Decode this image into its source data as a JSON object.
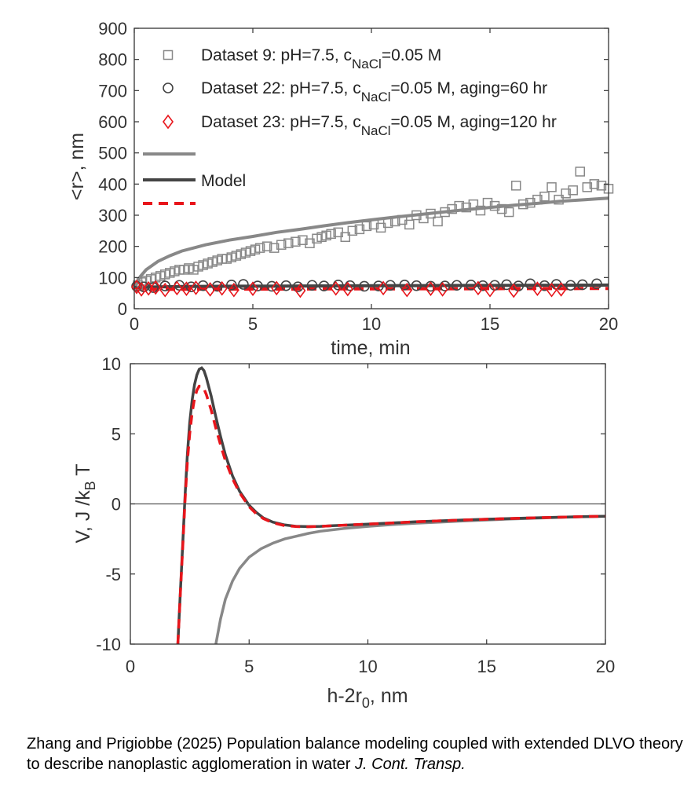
{
  "chart_data": [
    {
      "type": "scatter",
      "xlabel": "time, min",
      "ylabel": "<r>, nm",
      "xlim": [
        0,
        20
      ],
      "ylim": [
        0,
        900
      ],
      "xticks": [
        "0",
        "5",
        "10",
        "15",
        "20"
      ],
      "yticks": [
        "0",
        "100",
        "200",
        "300",
        "400",
        "500",
        "600",
        "700",
        "800",
        "900"
      ],
      "legend_placement": "top-left",
      "series": [
        {
          "name": "Dataset 9: pH=7.5, c_NaCl=0.05 M",
          "legend_parts": [
            "Dataset 9: pH=7.5, c",
            "NaCl",
            "=0.05 M"
          ],
          "marker": "square",
          "color": "#888888",
          "x": [
            0.15,
            0.3,
            0.5,
            0.7,
            0.9,
            1.1,
            1.3,
            1.5,
            1.7,
            1.9,
            2.1,
            2.3,
            2.5,
            2.7,
            2.9,
            3.1,
            3.3,
            3.5,
            3.7,
            3.9,
            4.1,
            4.3,
            4.5,
            4.7,
            4.9,
            5.1,
            5.3,
            5.6,
            5.9,
            6.2,
            6.5,
            6.8,
            7.1,
            7.4,
            7.7,
            7.9,
            8.1,
            8.3,
            8.6,
            8.9,
            9.2,
            9.5,
            9.8,
            10.1,
            10.4,
            10.7,
            11.0,
            11.3,
            11.6,
            11.9,
            12.2,
            12.5,
            12.8,
            13.1,
            13.4,
            13.7,
            14.0,
            14.3,
            14.6,
            14.9,
            15.2,
            15.5,
            15.8,
            16.1,
            16.4,
            16.7,
            17.0,
            17.3,
            17.6,
            17.9,
            18.2,
            18.5,
            18.8,
            19.1,
            19.4,
            19.7,
            20.0
          ],
          "y": [
            75,
            85,
            90,
            95,
            100,
            105,
            110,
            115,
            120,
            125,
            125,
            130,
            125,
            135,
            140,
            145,
            150,
            155,
            160,
            160,
            165,
            170,
            175,
            180,
            185,
            190,
            195,
            200,
            195,
            205,
            210,
            215,
            220,
            210,
            225,
            230,
            235,
            240,
            245,
            230,
            250,
            255,
            265,
            270,
            260,
            275,
            280,
            285,
            270,
            300,
            290,
            305,
            280,
            310,
            320,
            330,
            325,
            335,
            315,
            340,
            330,
            320,
            310,
            395,
            335,
            340,
            350,
            360,
            390,
            350,
            370,
            380,
            440,
            390,
            400,
            395,
            385
          ]
        },
        {
          "name": "Dataset 22: pH=7.5, c_NaCl=0.05 M, aging=60 hr",
          "legend_parts": [
            "Dataset 22: pH=7.5, c",
            "NaCl",
            "=0.05 M, aging=60 hr"
          ],
          "marker": "circle",
          "color": "#444444",
          "x": [
            0.1,
            0.4,
            0.8,
            1.3,
            1.9,
            2.4,
            2.9,
            3.5,
            4.1,
            4.6,
            5.2,
            5.8,
            6.4,
            6.9,
            7.5,
            8.0,
            8.6,
            9.1,
            9.7,
            10.3,
            10.8,
            11.4,
            11.9,
            12.5,
            13.1,
            13.6,
            14.2,
            14.7,
            15.2,
            15.7,
            16.2,
            16.7,
            17.3,
            17.8,
            18.4,
            18.9,
            19.5
          ],
          "y": [
            72,
            70,
            68,
            73,
            75,
            70,
            74,
            72,
            76,
            78,
            73,
            72,
            74,
            70,
            75,
            73,
            76,
            74,
            72,
            73,
            75,
            76,
            74,
            72,
            73,
            75,
            76,
            74,
            75,
            77,
            73,
            80,
            74,
            78,
            75,
            77,
            80
          ]
        },
        {
          "name": "Dataset 23: pH=7.5, c_NaCl=0.05 M, aging=120 hr",
          "legend_parts": [
            "Dataset 23: pH=7.5, c",
            "NaCl",
            "=0.05 M, aging=120 hr"
          ],
          "marker": "diamond",
          "color": "#e8151b",
          "x": [
            0.1,
            0.3,
            0.6,
            0.9,
            1.3,
            1.8,
            2.2,
            2.6,
            3.2,
            3.7,
            4.2,
            5.0,
            6.0,
            7.0,
            8.5,
            9.0,
            10.5,
            11.5,
            12.5,
            13.0,
            14.5,
            15.0,
            16.0,
            17.0,
            17.6,
            18.0
          ],
          "y": [
            70,
            62,
            65,
            68,
            60,
            66,
            64,
            67,
            62,
            65,
            60,
            64,
            66,
            58,
            65,
            63,
            66,
            60,
            64,
            62,
            66,
            60,
            58,
            64,
            60,
            62
          ]
        },
        {
          "name": "",
          "type": "line",
          "style": "solid",
          "color": "#888888",
          "x": [
            0,
            0.25,
            0.5,
            1,
            1.5,
            2,
            3,
            4,
            5,
            6,
            7,
            8,
            9,
            10,
            11,
            12,
            13,
            14,
            15,
            16,
            17,
            18,
            19,
            20
          ],
          "y": [
            65,
            103,
            125,
            152,
            170,
            185,
            205,
            220,
            232,
            245,
            255,
            266,
            276,
            285,
            294,
            302,
            310,
            318,
            325,
            332,
            338,
            345,
            350,
            355
          ]
        },
        {
          "name": "Model",
          "type": "line",
          "style": "solid",
          "color": "#444444",
          "x": [
            0,
            1,
            2,
            4,
            6,
            8,
            10,
            12,
            14,
            16,
            18,
            20
          ],
          "y": [
            68,
            70,
            71,
            72,
            72.5,
            73,
            73.5,
            74,
            74.5,
            75,
            75.5,
            76
          ]
        },
        {
          "name": "",
          "type": "line",
          "style": "dashed",
          "color": "#e8151b",
          "x": [
            0,
            1,
            2,
            4,
            6,
            8,
            10,
            12,
            14,
            16,
            18,
            20
          ],
          "y": [
            62,
            62,
            62.5,
            63,
            63,
            63.5,
            63.5,
            64,
            64,
            64.5,
            64.5,
            65
          ]
        }
      ]
    },
    {
      "type": "line",
      "xlabel": "h-2r0, nm",
      "xlabel_parts": [
        "h-2r",
        "0",
        ", nm"
      ],
      "ylabel": "V, J /kB T",
      "ylabel_parts": [
        "V, J /k",
        "B",
        " T"
      ],
      "xlim": [
        0,
        20
      ],
      "ylim": [
        -10,
        10
      ],
      "xticks": [
        "0",
        "5",
        "10",
        "15",
        "20"
      ],
      "yticks": [
        "-10",
        "-5",
        "0",
        "5",
        "10"
      ],
      "zero_line": true,
      "series": [
        {
          "name": "",
          "style": "solid",
          "color": "#888888",
          "x": [
            3.6,
            3.8,
            4.0,
            4.3,
            4.6,
            5.0,
            5.5,
            6.0,
            6.5,
            7.0,
            7.5,
            8.0,
            9.0,
            10.0,
            11.0,
            12.0,
            13.0,
            14.0,
            15.0,
            16.0,
            17.0,
            18.0,
            19.0,
            20.0
          ],
          "y": [
            -10,
            -8.2,
            -6.8,
            -5.5,
            -4.6,
            -3.8,
            -3.2,
            -2.8,
            -2.5,
            -2.3,
            -2.1,
            -1.95,
            -1.75,
            -1.6,
            -1.48,
            -1.38,
            -1.3,
            -1.22,
            -1.15,
            -1.08,
            -1.02,
            -0.97,
            -0.92,
            -0.88
          ]
        },
        {
          "name": "",
          "style": "solid",
          "color": "#444444",
          "x": [
            2.0,
            2.1,
            2.2,
            2.3,
            2.4,
            2.5,
            2.6,
            2.7,
            2.8,
            2.9,
            3.0,
            3.1,
            3.2,
            3.4,
            3.6,
            3.8,
            4.0,
            4.3,
            4.6,
            5.0,
            5.3,
            5.6,
            6.0,
            6.5,
            7.0,
            7.5,
            8.0,
            8.5,
            9.0,
            10.0,
            11.0,
            12.0,
            13.0,
            14.0,
            15.0,
            16.0,
            17.0,
            18.0,
            19.0,
            20.0
          ],
          "y": [
            -10,
            -6.5,
            -3.0,
            0.5,
            3.5,
            5.8,
            7.4,
            8.5,
            9.2,
            9.6,
            9.7,
            9.5,
            9.0,
            7.7,
            6.2,
            4.8,
            3.5,
            2.0,
            0.9,
            -0.1,
            -0.6,
            -1.0,
            -1.3,
            -1.5,
            -1.6,
            -1.62,
            -1.6,
            -1.56,
            -1.52,
            -1.44,
            -1.36,
            -1.28,
            -1.21,
            -1.15,
            -1.09,
            -1.04,
            -0.99,
            -0.95,
            -0.91,
            -0.88
          ]
        },
        {
          "name": "",
          "style": "dashed",
          "color": "#e8151b",
          "x": [
            2.0,
            2.1,
            2.2,
            2.3,
            2.4,
            2.5,
            2.6,
            2.7,
            2.8,
            2.9,
            3.0,
            3.1,
            3.2,
            3.4,
            3.6,
            3.8,
            4.0,
            4.3,
            4.6,
            5.0,
            5.3,
            5.6,
            6.0,
            6.5,
            7.0,
            7.5,
            8.0,
            8.5,
            9.0,
            10.0,
            11.0,
            12.0,
            13.0,
            14.0,
            15.0,
            16.0,
            17.0,
            18.0,
            19.0,
            20.0
          ],
          "y": [
            -10,
            -6.6,
            -3.2,
            0.2,
            3.0,
            5.0,
            6.5,
            7.5,
            8.1,
            8.4,
            8.4,
            8.2,
            7.8,
            6.7,
            5.4,
            4.2,
            3.1,
            1.8,
            0.8,
            -0.2,
            -0.7,
            -1.05,
            -1.35,
            -1.55,
            -1.62,
            -1.63,
            -1.6,
            -1.56,
            -1.52,
            -1.44,
            -1.36,
            -1.28,
            -1.21,
            -1.15,
            -1.09,
            -1.04,
            -0.99,
            -0.95,
            -0.91,
            -0.88
          ]
        }
      ]
    }
  ],
  "caption": {
    "text": "Zhang and Prigiobbe (2025) Population balance modeling coupled with extended DLVO theory to describe nanoplastic agglomeration in water ",
    "journal": "J. Cont. Transp."
  }
}
